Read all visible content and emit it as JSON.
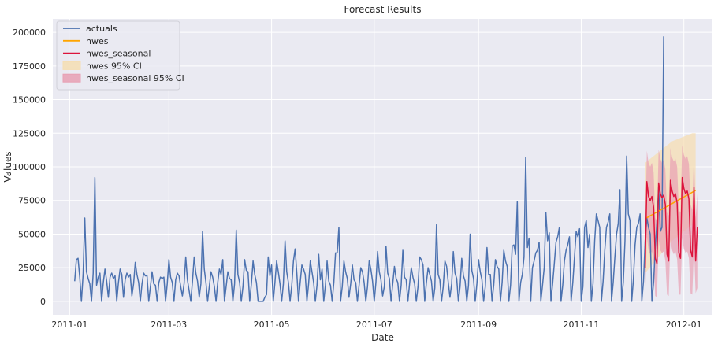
{
  "chart_data": {
    "type": "line",
    "title": "Forecast Results",
    "xlabel": "Date",
    "ylabel": "Values",
    "xlim": [
      "2010-12-22",
      "2012-01-18"
    ],
    "ylim": [
      -10000,
      210000
    ],
    "x_ticks": [
      "2011-01",
      "2011-03",
      "2011-05",
      "2011-07",
      "2011-09",
      "2011-11",
      "2012-01"
    ],
    "y_ticks": [
      0,
      25000,
      50000,
      75000,
      100000,
      125000,
      150000,
      175000,
      200000
    ],
    "y_tick_labels": [
      "0",
      "25000",
      "50000",
      "75000",
      "100000",
      "125000",
      "150000",
      "175000",
      "200000"
    ],
    "grid": true,
    "legend_position": "top-left",
    "colors": {
      "background": "#eaeaf2",
      "grid": "#ffffff",
      "actuals": "#4c72b0",
      "hwes": "#ffa500",
      "hwes_seasonal": "#dc143c",
      "hwes_ci": "#f5deb3",
      "hwes_seasonal_ci": "#e8a0b4"
    },
    "legend": [
      {
        "key": "actuals",
        "label": "actuals",
        "kind": "line"
      },
      {
        "key": "hwes",
        "label": "hwes",
        "kind": "line"
      },
      {
        "key": "hwes_seasonal",
        "label": "hwes_seasonal",
        "kind": "line"
      },
      {
        "key": "hwes_ci",
        "label": "hwes 95% CI",
        "kind": "band"
      },
      {
        "key": "hwes_seasonal_ci",
        "label": "hwes_seasonal 95% CI",
        "kind": "band"
      }
    ],
    "series": [
      {
        "name": "actuals",
        "start_date": "2011-01-04",
        "values": [
          15000,
          31000,
          32000,
          18000,
          0,
          20000,
          62000,
          22000,
          17000,
          13000,
          0,
          21000,
          92000,
          12000,
          18000,
          21000,
          0,
          14000,
          24000,
          15000,
          3000,
          18000,
          21000,
          17000,
          19000,
          0,
          14000,
          24000,
          20000,
          3000,
          16000,
          21000,
          18000,
          20000,
          4000,
          13000,
          29000,
          20000,
          14000,
          0,
          13000,
          21000,
          19000,
          19000,
          0,
          11000,
          22000,
          13000,
          12000,
          0,
          14000,
          18000,
          17000,
          18000,
          0,
          13000,
          31000,
          18000,
          14000,
          0,
          16000,
          21000,
          19000,
          11000,
          4000,
          13000,
          33000,
          16000,
          8000,
          0,
          15000,
          33000,
          21000,
          15000,
          3000,
          13000,
          52000,
          24000,
          14000,
          0,
          11000,
          22000,
          18000,
          11000,
          0,
          14000,
          24000,
          20000,
          31000,
          0,
          11000,
          22000,
          17000,
          16000,
          0,
          13000,
          53000,
          20000,
          14000,
          0,
          11000,
          31000,
          23000,
          22000,
          0,
          13000,
          30000,
          20000,
          14000,
          0,
          0,
          0,
          0,
          3000,
          5000,
          33000,
          19000,
          27000,
          0,
          14000,
          30000,
          22000,
          13000,
          0,
          13000,
          45000,
          22000,
          14000,
          0,
          12000,
          30000,
          39000,
          21000,
          0,
          14000,
          27000,
          24000,
          20000,
          0,
          13000,
          30000,
          22000,
          14000,
          0,
          12000,
          35000,
          16000,
          24000,
          0,
          12000,
          30000,
          15000,
          12000,
          0,
          14000,
          36000,
          36000,
          55000,
          0,
          11000,
          30000,
          22000,
          17000,
          3000,
          13000,
          27000,
          16000,
          14000,
          0,
          12000,
          25000,
          22000,
          14000,
          0,
          11000,
          30000,
          24000,
          15000,
          0,
          14000,
          37000,
          22000,
          16000,
          4000,
          11000,
          41000,
          21000,
          17000,
          0,
          13000,
          26000,
          17000,
          14000,
          0,
          12000,
          38000,
          18000,
          16000,
          0,
          13000,
          25000,
          18000,
          13000,
          0,
          11000,
          33000,
          31000,
          27000,
          0,
          14000,
          25000,
          20000,
          15000,
          0,
          10000,
          57000,
          20000,
          16000,
          0,
          11000,
          30000,
          26000,
          14000,
          3000,
          13000,
          37000,
          21000,
          17000,
          0,
          11000,
          32000,
          19000,
          15000,
          0,
          12000,
          50000,
          23000,
          17000,
          0,
          13000,
          31000,
          22000,
          16000,
          0,
          11000,
          40000,
          20000,
          20000,
          0,
          12000,
          31000,
          26000,
          24000,
          0,
          14000,
          38000,
          30000,
          26000,
          0,
          12000,
          41000,
          42000,
          35000,
          74000,
          0,
          14000,
          20000,
          33000,
          107000,
          40000,
          47000,
          0,
          25000,
          30000,
          36000,
          38000,
          44000,
          0,
          12000,
          25000,
          66000,
          45000,
          51000,
          0,
          13000,
          28000,
          44000,
          48000,
          55000,
          0,
          12000,
          30000,
          38000,
          42000,
          48000,
          0,
          14000,
          33000,
          52000,
          48000,
          54000,
          0,
          11000,
          55000,
          60000,
          40000,
          50000,
          0,
          13000,
          45000,
          65000,
          60000,
          55000,
          0,
          15000,
          38000,
          55000,
          59000,
          65000,
          0,
          14000,
          33000,
          50000,
          58000,
          83000,
          0,
          14000,
          45000,
          108000,
          65000,
          60000,
          0,
          16000,
          42000,
          55000,
          58000,
          65000,
          0,
          15000,
          45000,
          62000,
          55000,
          50000,
          0,
          14000,
          40000,
          59000,
          85000,
          52000,
          55000,
          197000
        ],
        "forecast": false
      },
      {
        "name": "hwes",
        "start_date": "2011-12-09",
        "values": [
          61500,
          62200,
          62900,
          63600,
          64300,
          65000,
          65700,
          66400,
          67100,
          67800,
          68500,
          69200,
          69900,
          70600,
          71300,
          72000,
          72700,
          73400,
          74100,
          74800,
          75500,
          76200,
          76900,
          77600,
          78300,
          79000,
          79700,
          80400,
          81100,
          81800,
          82500
        ]
      },
      {
        "name": "hwes_seasonal",
        "start_date": "2011-12-09",
        "values": [
          25000,
          89000,
          78000,
          75000,
          78000,
          70000,
          32000,
          28000,
          88000,
          80000,
          77000,
          79000,
          72000,
          35000,
          30000,
          90000,
          82000,
          78000,
          80000,
          73000,
          36000,
          32000,
          92000,
          84000,
          80000,
          82000,
          76000,
          38000,
          33000,
          85000,
          30000,
          55000
        ]
      }
    ],
    "confidence_bands": [
      {
        "name": "hwes 95% CI",
        "start_date": "2011-12-09",
        "lower": [
          21000,
          22500,
          24000,
          25500,
          27000,
          28500,
          30000,
          31500,
          33000,
          34500,
          36000,
          37500,
          39000,
          40500,
          42000,
          43500,
          45000,
          46000,
          47000,
          48000,
          49000,
          50000,
          51000,
          52000,
          53000,
          54000,
          55000,
          56000,
          57000,
          57500,
          58000
        ],
        "upper": [
          103000,
          104000,
          105000,
          106000,
          107000,
          108000,
          109000,
          110000,
          111000,
          112000,
          113000,
          114000,
          115000,
          116000,
          117000,
          118000,
          119000,
          119500,
          120000,
          120500,
          121000,
          121500,
          122000,
          122500,
          123000,
          123500,
          124000,
          124500,
          125000,
          125000,
          125000
        ]
      },
      {
        "name": "hwes_seasonal 95% CI",
        "start_date": "2011-12-09",
        "lower": [
          2000,
          48000,
          38000,
          35000,
          37000,
          30000,
          4000,
          3000,
          46000,
          38000,
          36000,
          37000,
          30000,
          5000,
          4000,
          46000,
          38000,
          35000,
          37000,
          31000,
          5000,
          5000,
          47000,
          39000,
          36000,
          37000,
          32000,
          6000,
          5000,
          40000,
          6000,
          10000
        ],
        "upper": [
          52000,
          112000,
          103000,
          100000,
          103000,
          96000,
          62000,
          60000,
          113000,
          106000,
          103000,
          105000,
          98000,
          66000,
          64000,
          114000,
          107000,
          104000,
          106000,
          100000,
          68000,
          66000,
          116000,
          109000,
          106000,
          108000,
          102000,
          72000,
          68000,
          110000,
          62000,
          80000
        ]
      }
    ]
  }
}
